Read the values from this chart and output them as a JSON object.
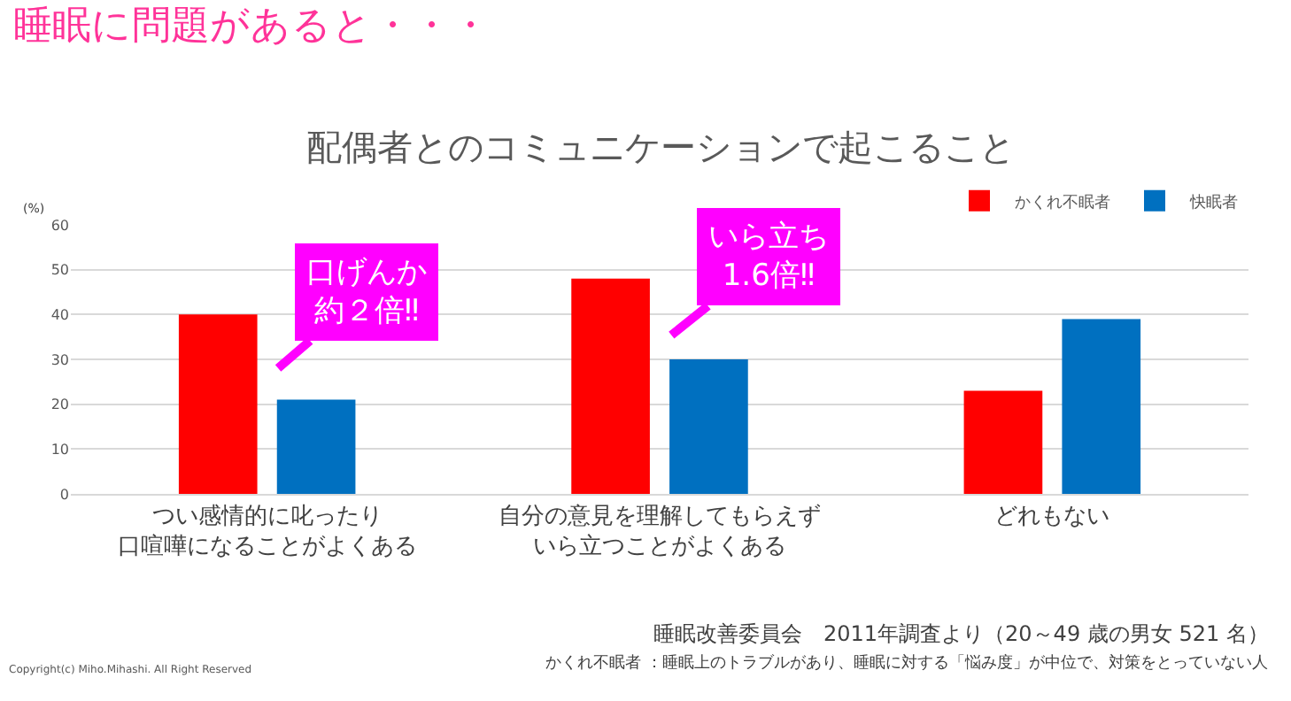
{
  "chart_data": {
    "type": "bar",
    "title": "睡眠に問題があると・・・",
    "subtitle": "配偶者とのコミュニケーションで起こること",
    "ylabel": "(%)",
    "categories": [
      "つい感情的に叱ったり口喧嘩になることがよくある",
      "自分の意見を理解してもらえずいら立つことがよくある",
      "どれもない"
    ],
    "series": [
      {
        "name": "かくれ不眠者",
        "color": "#ff0000",
        "values": [
          40,
          48,
          23
        ]
      },
      {
        "name": "快眠者",
        "color": "#0070c0",
        "values": [
          21,
          30,
          39
        ]
      }
    ],
    "ylim": [
      0,
      60
    ],
    "yticks": [
      0,
      10,
      20,
      30,
      40,
      50,
      60
    ],
    "grid": "y",
    "legend": "top right",
    "annotations": [
      "口げんか約２倍‼",
      "いら立ち1.6倍‼",
      "睡眠改善委員会　2011年調査より（20～49 歳の男女 521 名）",
      "かくれ不眠者 ：睡眠上のトラブルがあり、睡眠に対する「悩み度」が中位で、対策をとっていない人",
      "Copyright(c) Miho.Mihashi. All Right Reserved"
    ]
  }
}
